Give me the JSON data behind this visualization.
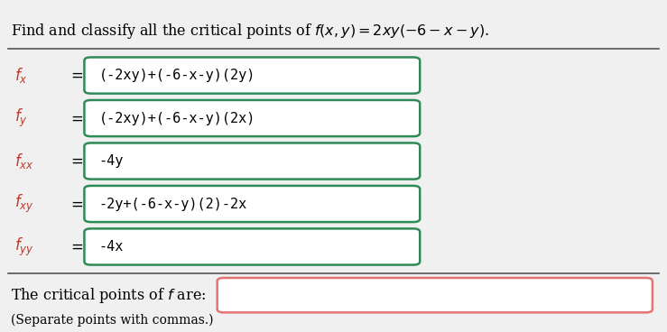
{
  "bg_color": "#f0f0f0",
  "title_text": "Find and classify all the critical points of $f(x, y) = 2xy(-6 - x - y)$.",
  "title_fontsize": 11.5,
  "rows": [
    {
      "label": "$f_x$",
      "eq": "(-2xy)+(-6-x-y)(2y)",
      "box_color": "#2e8b57"
    },
    {
      "label": "$f_y$",
      "eq": "(-2xy)+(-6-x-y)(2x)",
      "box_color": "#2e8b57"
    },
    {
      "label": "$f_{xx}$",
      "eq": "-4y",
      "box_color": "#2e8b57"
    },
    {
      "label": "$f_{xy}$",
      "eq": "-2y+(-6-x-y)(2)-2x",
      "box_color": "#2e8b57"
    },
    {
      "label": "$f_{yy}$",
      "eq": "-4x",
      "box_color": "#2e8b57"
    }
  ],
  "bottom_label": "The critical points of $f$ are:",
  "bottom_note": "(Separate points with commas.)",
  "input_box_color": "#e57373",
  "label_color": "#c0392b",
  "eq_color": "#000000",
  "text_color": "#000000",
  "line_color": "#555555"
}
